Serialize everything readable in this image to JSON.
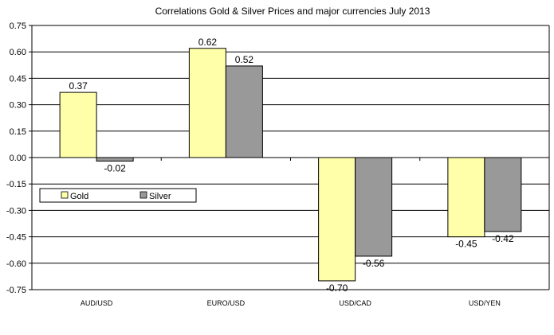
{
  "chart_data": {
    "type": "bar",
    "title": "Correlations Gold & Silver Prices and major currencies July 2013",
    "xlabel": "",
    "ylabel": "",
    "categories": [
      "AUD/USD",
      "EURO/USD",
      "USD/CAD",
      "USD/YEN"
    ],
    "series": [
      {
        "name": "Gold",
        "values": [
          0.37,
          0.62,
          -0.7,
          -0.45
        ],
        "labels": [
          "0.37",
          "0.62",
          "-0.70",
          "-0.45"
        ],
        "color": "#FFFFAA"
      },
      {
        "name": "Silver",
        "values": [
          -0.02,
          0.52,
          -0.56,
          -0.42
        ],
        "labels": [
          "-0.02",
          "0.52",
          "-0.56",
          "-0.42"
        ],
        "color": "#999999"
      }
    ],
    "ylim": [
      -0.75,
      0.75
    ],
    "yticks": [
      "0.75",
      "0.60",
      "0.45",
      "0.30",
      "0.15",
      "0.00",
      "-0.15",
      "-0.30",
      "-0.45",
      "-0.60",
      "-0.75"
    ],
    "grid": true,
    "legend": "left-middle"
  }
}
